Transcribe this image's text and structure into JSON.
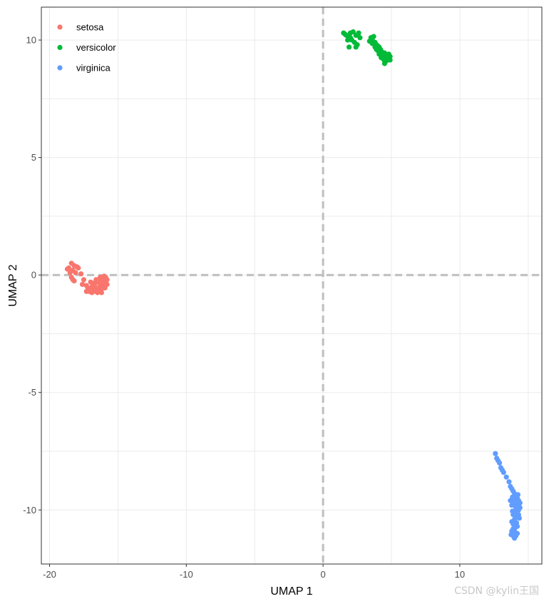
{
  "chart_data": {
    "type": "scatter",
    "xlabel": "UMAP 1",
    "ylabel": "UMAP 2",
    "xlim": [
      -20.6,
      16
    ],
    "ylim": [
      -12.3,
      11.4
    ],
    "x_ticks": [
      -20,
      -10,
      0,
      10
    ],
    "y_ticks": [
      -10,
      -5,
      0,
      5,
      10
    ],
    "x_tick_labels": [
      "-20",
      "-10",
      "0",
      "10"
    ],
    "y_tick_labels": [
      "-10",
      "-5",
      "0",
      "5",
      "10"
    ],
    "grid": true,
    "reference_lines": {
      "x": 0,
      "y": 0,
      "style": "dashed",
      "color": "#bebebe"
    },
    "legend": {
      "position": "top-left"
    },
    "series": [
      {
        "name": "setosa",
        "color": "#F8766D",
        "points": [
          [
            -18.4,
            0.5
          ],
          [
            -18.6,
            0.3
          ],
          [
            -18.2,
            0.4
          ],
          [
            -18.5,
            0.1
          ],
          [
            -18.3,
            0.2
          ],
          [
            -18.0,
            0.35
          ],
          [
            -17.9,
            0.3
          ],
          [
            -18.7,
            0.25
          ],
          [
            -18.4,
            -0.1
          ],
          [
            -18.3,
            -0.2
          ],
          [
            -18.2,
            -0.25
          ],
          [
            -17.7,
            0.05
          ],
          [
            -17.5,
            -0.2
          ],
          [
            -17.6,
            -0.4
          ],
          [
            -17.3,
            -0.45
          ],
          [
            -17.2,
            -0.55
          ],
          [
            -17.0,
            -0.6
          ],
          [
            -16.8,
            -0.7
          ],
          [
            -16.5,
            -0.75
          ],
          [
            -16.3,
            -0.7
          ],
          [
            -16.2,
            -0.6
          ],
          [
            -16.1,
            -0.5
          ],
          [
            -16.0,
            -0.45
          ],
          [
            -15.9,
            -0.3
          ],
          [
            -15.8,
            -0.2
          ],
          [
            -15.9,
            -0.1
          ],
          [
            -16.0,
            -0.05
          ],
          [
            -16.1,
            -0.15
          ],
          [
            -16.3,
            -0.1
          ],
          [
            -16.5,
            -0.3
          ],
          [
            -16.7,
            -0.4
          ],
          [
            -16.9,
            -0.5
          ],
          [
            -17.1,
            -0.7
          ],
          [
            -16.6,
            -0.55
          ],
          [
            -16.2,
            -0.25
          ],
          [
            -15.8,
            -0.4
          ],
          [
            -16.4,
            -0.2
          ],
          [
            -16.0,
            -0.35
          ],
          [
            -17.0,
            -0.3
          ],
          [
            -16.7,
            -0.65
          ],
          [
            -16.3,
            -0.45
          ],
          [
            -16.8,
            -0.35
          ],
          [
            -16.6,
            -0.2
          ],
          [
            -16.2,
            -0.75
          ],
          [
            -17.3,
            -0.7
          ],
          [
            -16.9,
            -0.75
          ],
          [
            -16.4,
            -0.6
          ],
          [
            -18.1,
            0.1
          ],
          [
            -16.1,
            -0.35
          ],
          [
            -15.95,
            -0.55
          ]
        ]
      },
      {
        "name": "versicolor",
        "color": "#00BA38",
        "points": [
          [
            1.5,
            10.3
          ],
          [
            1.7,
            10.2
          ],
          [
            1.6,
            10.25
          ],
          [
            1.9,
            10.15
          ],
          [
            2.0,
            10.3
          ],
          [
            2.2,
            10.35
          ],
          [
            2.4,
            10.2
          ],
          [
            2.6,
            10.3
          ],
          [
            2.1,
            10.0
          ],
          [
            2.3,
            9.9
          ],
          [
            2.5,
            9.8
          ],
          [
            2.4,
            9.7
          ],
          [
            1.9,
            9.7
          ],
          [
            2.7,
            10.1
          ],
          [
            2.0,
            10.1
          ],
          [
            1.8,
            10.0
          ],
          [
            3.5,
            10.1
          ],
          [
            3.7,
            10.15
          ],
          [
            3.6,
            10.0
          ],
          [
            3.8,
            9.9
          ],
          [
            3.9,
            9.8
          ],
          [
            4.0,
            9.75
          ],
          [
            4.1,
            9.7
          ],
          [
            3.9,
            9.6
          ],
          [
            4.2,
            9.6
          ],
          [
            4.3,
            9.5
          ],
          [
            4.5,
            9.45
          ],
          [
            4.4,
            9.35
          ],
          [
            4.6,
            9.3
          ],
          [
            4.7,
            9.25
          ],
          [
            4.8,
            9.2
          ],
          [
            4.9,
            9.15
          ],
          [
            4.5,
            9.1
          ],
          [
            4.6,
            9.2
          ],
          [
            4.7,
            9.35
          ],
          [
            4.8,
            9.4
          ],
          [
            4.4,
            9.2
          ],
          [
            4.5,
            9.0
          ],
          [
            4.9,
            9.3
          ],
          [
            4.2,
            9.45
          ],
          [
            4.0,
            9.55
          ],
          [
            3.8,
            9.7
          ],
          [
            3.6,
            9.85
          ],
          [
            4.3,
            9.3
          ],
          [
            4.6,
            9.1
          ],
          [
            4.1,
            9.4
          ],
          [
            4.7,
            9.15
          ],
          [
            3.4,
            9.95
          ],
          [
            4.85,
            9.25
          ],
          [
            4.25,
            9.25
          ]
        ]
      },
      {
        "name": "virginica",
        "color": "#619CFF",
        "points": [
          [
            12.6,
            -7.6
          ],
          [
            12.7,
            -7.8
          ],
          [
            12.8,
            -7.9
          ],
          [
            12.9,
            -8.0
          ],
          [
            13.0,
            -8.2
          ],
          [
            13.1,
            -8.3
          ],
          [
            13.2,
            -8.4
          ],
          [
            13.6,
            -8.8
          ],
          [
            13.7,
            -9.0
          ],
          [
            13.8,
            -9.1
          ],
          [
            13.9,
            -9.2
          ],
          [
            14.0,
            -9.3
          ],
          [
            14.1,
            -9.4
          ],
          [
            14.2,
            -9.5
          ],
          [
            14.3,
            -9.6
          ],
          [
            14.0,
            -9.7
          ],
          [
            13.8,
            -9.8
          ],
          [
            14.4,
            -9.7
          ],
          [
            14.4,
            -9.9
          ],
          [
            14.2,
            -10.0
          ],
          [
            14.0,
            -10.1
          ],
          [
            13.9,
            -10.2
          ],
          [
            14.3,
            -10.2
          ],
          [
            14.1,
            -10.3
          ],
          [
            14.0,
            -10.4
          ],
          [
            13.8,
            -10.5
          ],
          [
            13.9,
            -10.6
          ],
          [
            14.2,
            -10.7
          ],
          [
            14.0,
            -10.8
          ],
          [
            13.9,
            -11.0
          ],
          [
            14.1,
            -11.1
          ],
          [
            14.0,
            -11.2
          ],
          [
            13.8,
            -10.9
          ],
          [
            14.3,
            -10.0
          ],
          [
            14.2,
            -9.8
          ],
          [
            13.95,
            -9.55
          ],
          [
            14.05,
            -9.65
          ],
          [
            13.85,
            -10.05
          ],
          [
            14.15,
            -10.55
          ],
          [
            14.05,
            -10.95
          ],
          [
            13.75,
            -11.05
          ],
          [
            13.95,
            -11.15
          ],
          [
            14.25,
            -9.35
          ],
          [
            14.35,
            -10.35
          ],
          [
            13.85,
            -9.45
          ],
          [
            14.1,
            -9.9
          ],
          [
            13.9,
            -10.8
          ],
          [
            13.4,
            -8.6
          ],
          [
            14.2,
            -11.0
          ],
          [
            13.7,
            -9.6
          ]
        ]
      }
    ]
  },
  "watermark": "CSDN @kylin王国",
  "colors": {
    "panel_border": "#333333",
    "grid": "#ebebeb",
    "tick_text": "#4d4d4d",
    "reference_line": "#bebebe"
  }
}
